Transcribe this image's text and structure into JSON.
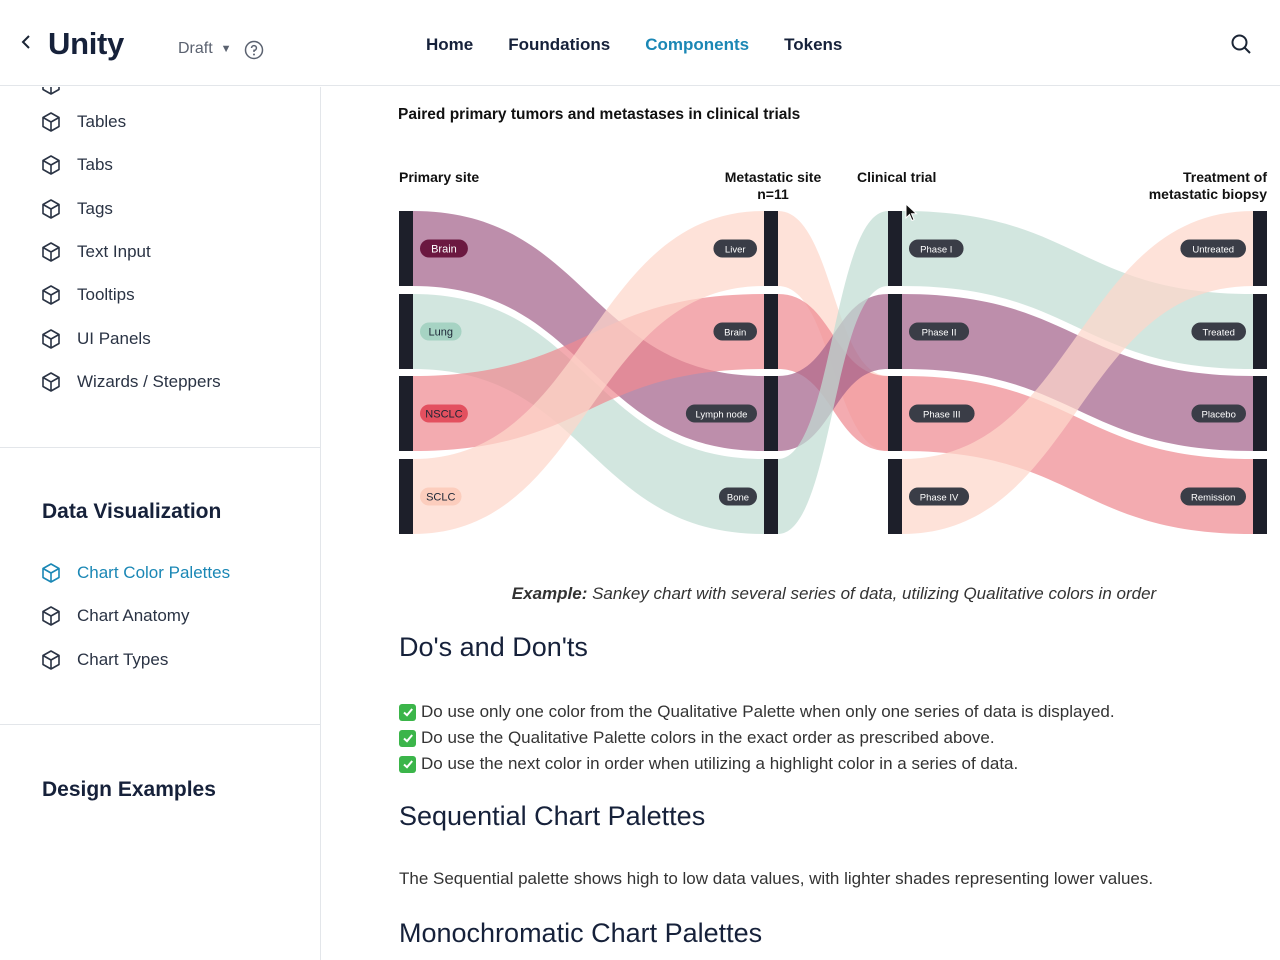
{
  "header": {
    "logo": "Unity",
    "status": "Draft",
    "nav": [
      "Home",
      "Foundations",
      "Components",
      "Tokens"
    ],
    "active_nav": "Components"
  },
  "sidebar": {
    "items": [
      "Tables",
      "Tabs",
      "Tags",
      "Text Input",
      "Tooltips",
      "UI Panels",
      "Wizards / Steppers"
    ],
    "section_data_viz": "Data Visualization",
    "dataviz_items": [
      "Chart Color Palettes",
      "Chart Anatomy",
      "Chart Types"
    ],
    "active_item": "Chart Color Palettes",
    "section_design": "Design Examples"
  },
  "main": {
    "caption_bold": "Example:",
    "caption_rest": " Sankey chart with several series of data, utilizing Qualitative colors in order",
    "dos_heading": "Do's and Don'ts",
    "dos": [
      "Do use only one color from the Qualitative Palette when only one series of data is displayed.",
      "Do use the Qualitative Palette colors in the exact order as prescribed above.",
      "Do use the next color in order when utilizing a highlight color in a series of data."
    ],
    "sequential_heading": "Sequential Chart Palettes",
    "sequential_text": "The Sequential palette shows high to low data values, with lighter shades representing lower values.",
    "mono_heading": "Monochromatic Chart Palettes"
  },
  "chart_data": {
    "type": "sankey",
    "title": "Paired primary tumors and metastases in clinical trials",
    "columns": [
      {
        "label": "Primary site",
        "nodes": [
          "Brain",
          "Lung",
          "NSCLC",
          "SCLC"
        ]
      },
      {
        "label": "Metastatic site",
        "sublabel": "n=11",
        "nodes": [
          "Liver",
          "Brain",
          "Lymph node",
          "Bone"
        ]
      },
      {
        "label": "Clinical trial",
        "nodes": [
          "Phase I",
          "Phase II",
          "Phase III",
          "Phase IV"
        ]
      },
      {
        "label": "Treatment of metastatic biopsy",
        "nodes": [
          "Untreated",
          "Treated",
          "Placebo",
          "Remission"
        ]
      }
    ],
    "flows": [
      {
        "from": "Brain",
        "to": "Lymph node",
        "color": "plum"
      },
      {
        "from": "Lung",
        "to": "Bone",
        "color": "green"
      },
      {
        "from": "NSCLC",
        "to": "Brain",
        "color": "red"
      },
      {
        "from": "SCLC",
        "to": "Liver",
        "color": "peach"
      },
      {
        "from": "Liver",
        "to": "Phase III",
        "color": "peach"
      },
      {
        "from": "Brain",
        "to": "Phase III",
        "color": "red"
      },
      {
        "from": "Lymph node",
        "to": "Phase II",
        "color": "plum"
      },
      {
        "from": "Bone",
        "to": "Phase I",
        "color": "green"
      },
      {
        "from": "Phase I",
        "to": "Treated",
        "color": "green"
      },
      {
        "from": "Phase II",
        "to": "Placebo",
        "color": "plum"
      },
      {
        "from": "Phase III",
        "to": "Remission",
        "color": "red"
      },
      {
        "from": "Phase IV",
        "to": "Untreated",
        "color": "peach"
      }
    ],
    "palette": {
      "plum": "#a4628a",
      "green": "#c0ddd3",
      "red": "#ef8a92",
      "peach": "#fdd7ca",
      "node": "#1d1f2a"
    }
  }
}
